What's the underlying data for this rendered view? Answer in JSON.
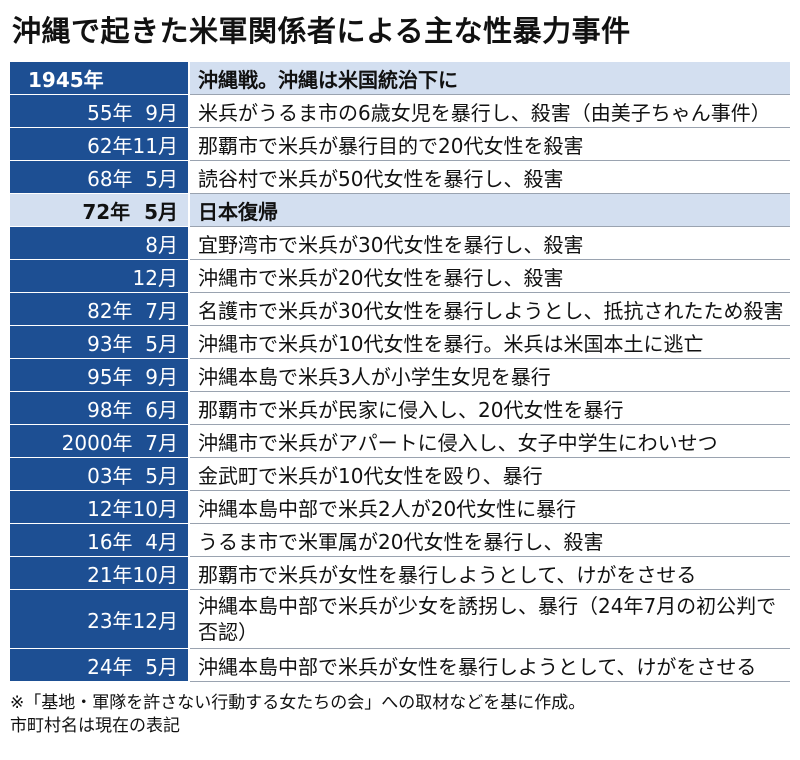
{
  "header": {
    "title": "沖縄で起きた米軍関係者による主な性暴力事件"
  },
  "table": {
    "rows": [
      [
        "1945年",
        "沖縄戦。沖縄は米国統治下に"
      ],
      [
        "55年  9月",
        "米兵がうるま市の6歳女児を暴行し、殺害（由美子ちゃん事件）"
      ],
      [
        "62年11月",
        "那覇市で米兵が暴行目的で20代女性を殺害"
      ],
      [
        "68年  5月",
        "読谷村で米兵が50代女性を暴行し、殺害"
      ],
      [
        "72年  5月",
        "日本復帰"
      ],
      [
        "8月",
        "宜野湾市で米兵が30代女性を暴行し、殺害"
      ],
      [
        "12月",
        "沖縄市で米兵が20代女性を暴行し、殺害"
      ],
      [
        "82年  7月",
        "名護市で米兵が30代女性を暴行しようとし、抵抗されたため殺害"
      ],
      [
        "93年  5月",
        "沖縄市で米兵が10代女性を暴行。米兵は米国本土に逃亡"
      ],
      [
        "95年  9月",
        "沖縄本島で米兵3人が小学生女児を暴行"
      ],
      [
        "98年  6月",
        "那覇市で米兵が民家に侵入し、20代女性を暴行"
      ],
      [
        "2000年  7月",
        "沖縄市で米兵がアパートに侵入し、女子中学生にわいせつ"
      ],
      [
        "03年  5月",
        "金武町で米兵が10代女性を殴り、暴行"
      ],
      [
        "12年10月",
        "沖縄本島中部で米兵2人が20代女性に暴行"
      ],
      [
        "16年  4月",
        "うるま市で米軍属が20代女性を暴行し、殺害"
      ],
      [
        "21年10月",
        "那覇市で米兵が女性を暴行しようとして、けがをさせる"
      ],
      [
        "23年12月",
        "沖縄本島中部で米兵が少女を誘拐し、暴行（24年7月の初公判で否認）"
      ],
      [
        "24年  5月",
        "沖縄本島中部で米兵が女性を暴行しようとして、けがをさせる"
      ]
    ]
  },
  "footnote": [
    "※「基地・軍隊を許さない行動する女たちの会」への取材などを基に作成。",
    "市町村名は現在の表記"
  ]
}
